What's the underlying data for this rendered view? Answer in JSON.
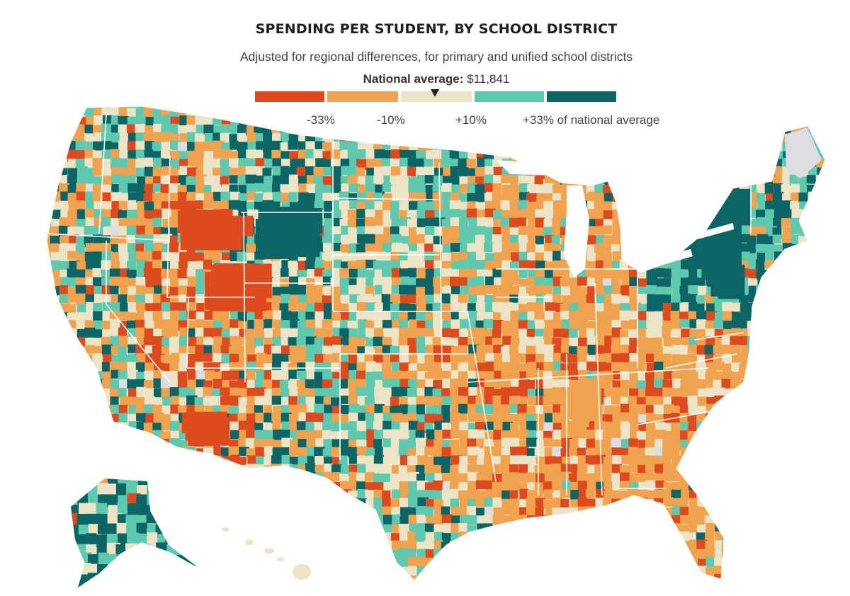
{
  "title": "SPENDING PER STUDENT, BY SCHOOL DISTRICT",
  "subtitle": "Adjusted for regional differences, for primary and unified school districts",
  "national_average": {
    "label": "National average:",
    "value": "$11,841"
  },
  "legend": {
    "bins": [
      {
        "name": "below -33%",
        "color": "#dc4a1e"
      },
      {
        "name": "-33% to -10%",
        "color": "#f0a24e"
      },
      {
        "name": "-10% to +10%",
        "color": "#ebe4c6"
      },
      {
        "name": "+10% to +33%",
        "color": "#5ec9ae"
      },
      {
        "name": "above +33%",
        "color": "#0d6464"
      }
    ],
    "ticks": [
      "-33%",
      "-10%",
      "+10%",
      "+33% of national average"
    ]
  },
  "map_colors": {
    "border": "#ffffff",
    "no_data": "#dcdde3"
  }
}
